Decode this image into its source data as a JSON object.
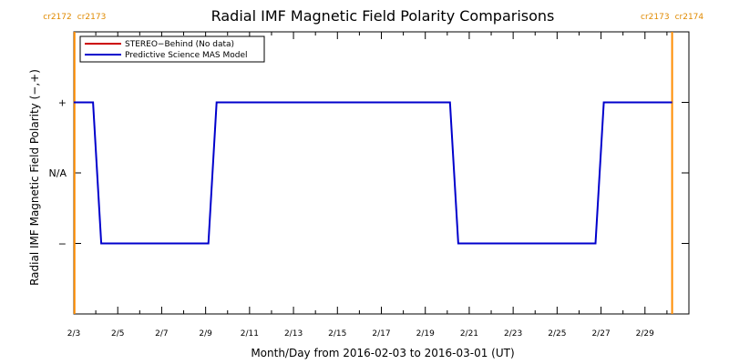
{
  "chart_data": {
    "type": "line",
    "title": "Radial IMF Magnetic Field Polarity Comparisons",
    "xlabel": "Month/Day from 2016-02-03 to 2016-03-01 (UT)",
    "ylabel": "Radial IMF Magnetic Field Polarity (−,+)",
    "xlim": [
      "2016-02-03",
      "2016-03-02"
    ],
    "x_tick_labels": [
      "2/3",
      "2/5",
      "2/7",
      "2/9",
      "2/11",
      "2/13",
      "2/15",
      "2/17",
      "2/19",
      "2/21",
      "2/23",
      "2/25",
      "2/27",
      "2/29"
    ],
    "y_categories": [
      {
        "value": 1,
        "label": "+"
      },
      {
        "value": 0,
        "label": "N/A"
      },
      {
        "value": -1,
        "label": "−"
      }
    ],
    "ylim": [
      -2,
      2
    ],
    "carrington_markers": [
      {
        "date": "2016-02-03T00:45",
        "left_label": "cr2172",
        "right_label": "cr2173"
      },
      {
        "date": "2016-03-01T05:40",
        "left_label": "cr2173",
        "right_label": "cr2174"
      }
    ],
    "legend_position": "top-left",
    "series": [
      {
        "name": "STEREO−Behind (No data)",
        "color": "#cc0000",
        "points": []
      },
      {
        "name": "Predictive Science MAS Model",
        "color": "#0000cc",
        "points": [
          {
            "x": "2016-02-03T00:00",
            "y": 1
          },
          {
            "x": "2016-02-03T21:00",
            "y": 1
          },
          {
            "x": "2016-02-04T06:00",
            "y": -1
          },
          {
            "x": "2016-02-09T03:00",
            "y": -1
          },
          {
            "x": "2016-02-09T12:00",
            "y": 1
          },
          {
            "x": "2016-02-20T03:00",
            "y": 1
          },
          {
            "x": "2016-02-20T12:00",
            "y": -1
          },
          {
            "x": "2016-02-26T18:00",
            "y": -1
          },
          {
            "x": "2016-02-27T03:00",
            "y": 1
          },
          {
            "x": "2016-03-01T05:40",
            "y": 1
          }
        ]
      }
    ]
  }
}
